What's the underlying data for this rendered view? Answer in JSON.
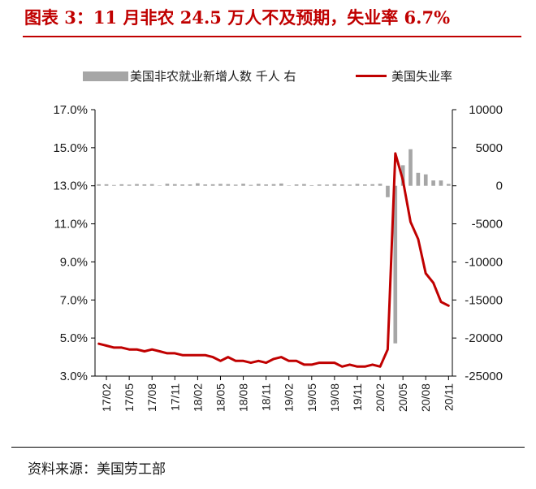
{
  "title": "图表 3：11 月非农 24.5 万人不及预期，失业率 6.7%",
  "source": "资料来源：美国劳工部",
  "colors": {
    "title": "#c00000",
    "bar": "#a6a6a6",
    "line": "#c00000",
    "axis": "#000000"
  },
  "chart_data": {
    "type": "bar+line",
    "legend": [
      "美国非农就业新增人数 千人 右",
      "美国失业率"
    ],
    "legend_position": "top",
    "grid": false,
    "x_tick_labels": [
      "17/02",
      "17/05",
      "17/08",
      "17/11",
      "18/02",
      "18/05",
      "18/08",
      "18/11",
      "19/02",
      "19/05",
      "19/08",
      "19/11",
      "20/02",
      "20/05",
      "20/08",
      "20/11"
    ],
    "left_axis": {
      "ticks": [
        "3.0%",
        "5.0%",
        "7.0%",
        "9.0%",
        "11.0%",
        "13.0%",
        "15.0%",
        "17.0%"
      ],
      "min": 3.0,
      "max": 17.0
    },
    "right_axis": {
      "ticks": [
        "10000",
        "5000",
        "0",
        "-5000",
        "-10000",
        "-15000",
        "-20000",
        "-25000"
      ],
      "min": -25000,
      "max": 10000
    },
    "months": [
      "17/01",
      "17/02",
      "17/03",
      "17/04",
      "17/05",
      "17/06",
      "17/07",
      "17/08",
      "17/09",
      "17/10",
      "17/11",
      "17/12",
      "18/01",
      "18/02",
      "18/03",
      "18/04",
      "18/05",
      "18/06",
      "18/07",
      "18/08",
      "18/09",
      "18/10",
      "18/11",
      "18/12",
      "19/01",
      "19/02",
      "19/03",
      "19/04",
      "19/05",
      "19/06",
      "19/07",
      "19/08",
      "19/09",
      "19/10",
      "19/11",
      "19/12",
      "20/01",
      "20/02",
      "20/03",
      "20/04",
      "20/05",
      "20/06",
      "20/07",
      "20/08",
      "20/09",
      "20/10",
      "20/11"
    ],
    "series": [
      {
        "name": "美国非农就业新增人数 千人 右",
        "axis": "right",
        "values": [
          200,
          200,
          100,
          200,
          150,
          230,
          190,
          220,
          50,
          270,
          220,
          180,
          180,
          330,
          180,
          200,
          250,
          220,
          150,
          270,
          120,
          250,
          180,
          220,
          300,
          30,
          180,
          230,
          80,
          170,
          160,
          220,
          180,
          150,
          250,
          180,
          210,
          270,
          -1500,
          -20700,
          2700,
          4800,
          1700,
          1500,
          700,
          700,
          245
        ]
      },
      {
        "name": "美国失业率",
        "axis": "left",
        "values": [
          4.7,
          4.6,
          4.5,
          4.5,
          4.4,
          4.4,
          4.3,
          4.4,
          4.3,
          4.2,
          4.2,
          4.1,
          4.1,
          4.1,
          4.1,
          4.0,
          3.8,
          4.0,
          3.8,
          3.8,
          3.7,
          3.8,
          3.7,
          3.9,
          4.0,
          3.8,
          3.8,
          3.6,
          3.6,
          3.7,
          3.7,
          3.7,
          3.5,
          3.6,
          3.5,
          3.5,
          3.6,
          3.5,
          4.4,
          14.7,
          13.3,
          11.1,
          10.2,
          8.4,
          7.9,
          6.9,
          6.7
        ]
      }
    ]
  }
}
